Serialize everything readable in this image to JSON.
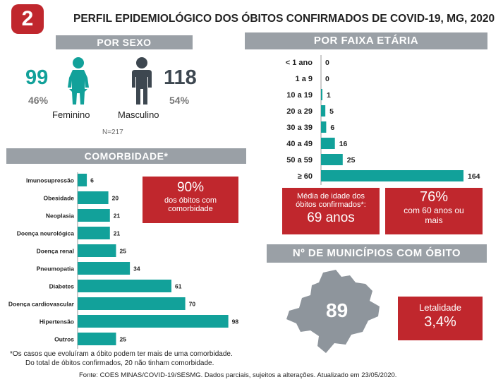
{
  "header": {
    "number": "2",
    "title": "PERFIL EPIDEMIOLÓGICO DOS ÓBITOS CONFIRMADOS DE COVID-19, MG, 2020"
  },
  "sexo": {
    "heading": "POR SEXO",
    "female": {
      "count": "99",
      "pct": "46%",
      "label": "Feminino"
    },
    "male": {
      "count": "118",
      "pct": "54%",
      "label": "Masculino"
    },
    "n": "N=217"
  },
  "faixa": {
    "heading": "POR FAIXA ETÁRIA"
  },
  "comorbidade": {
    "heading": "COMORBIDADE*",
    "highlight": {
      "value": "90%",
      "text1": "dos óbitos com",
      "text2": "comorbidade"
    }
  },
  "idade": {
    "media_line1": "Média de idade dos",
    "media_line2": "óbitos confirmados*:",
    "media_value": "69 anos",
    "pct_value": "76%",
    "pct_line1": "com 60 anos ou",
    "pct_line2": "mais"
  },
  "municipios": {
    "heading": "Nº DE MUNICÍPIOS COM ÓBITO",
    "count": "89",
    "letalidade_label": "Letalidade",
    "letalidade_value": "3,4%"
  },
  "footnotes": {
    "line1": "*Os casos que evoluíram a óbito podem ter mais de uma comorbidade.",
    "line2": "Do total de óbitos confirmados, 20 não tinham comorbidade.",
    "fonte": "Fonte: COES MINAS/COVID-19/SESMG. Dados parciais, sujeitos a alterações. Atualizado em 23/05/2020."
  },
  "colors": {
    "teal": "#12a19a",
    "red": "#c0272d",
    "gray": "#9aa0a6",
    "dark": "#3d4750"
  },
  "chart_data": [
    {
      "type": "bar",
      "orientation": "horizontal",
      "categories": [
        "Imunosupressão",
        "Obesidade",
        "Neoplasia",
        "Doença neurológica",
        "Doença renal",
        "Pneumopatia",
        "Diabetes",
        "Doença cardiovascular",
        "Hipertensão",
        "Outros"
      ],
      "values": [
        6,
        20,
        21,
        21,
        25,
        34,
        61,
        70,
        98,
        25
      ],
      "xlim": [
        0,
        100
      ]
    },
    {
      "type": "bar",
      "orientation": "horizontal",
      "categories": [
        "< 1 ano",
        "1 a 9",
        "10 a 19",
        "20 a 29",
        "30 a 39",
        "40 a 49",
        "50 a 59",
        "≥ 60"
      ],
      "values": [
        0,
        0,
        1,
        5,
        6,
        16,
        25,
        164
      ],
      "xlim": [
        0,
        164
      ]
    }
  ]
}
